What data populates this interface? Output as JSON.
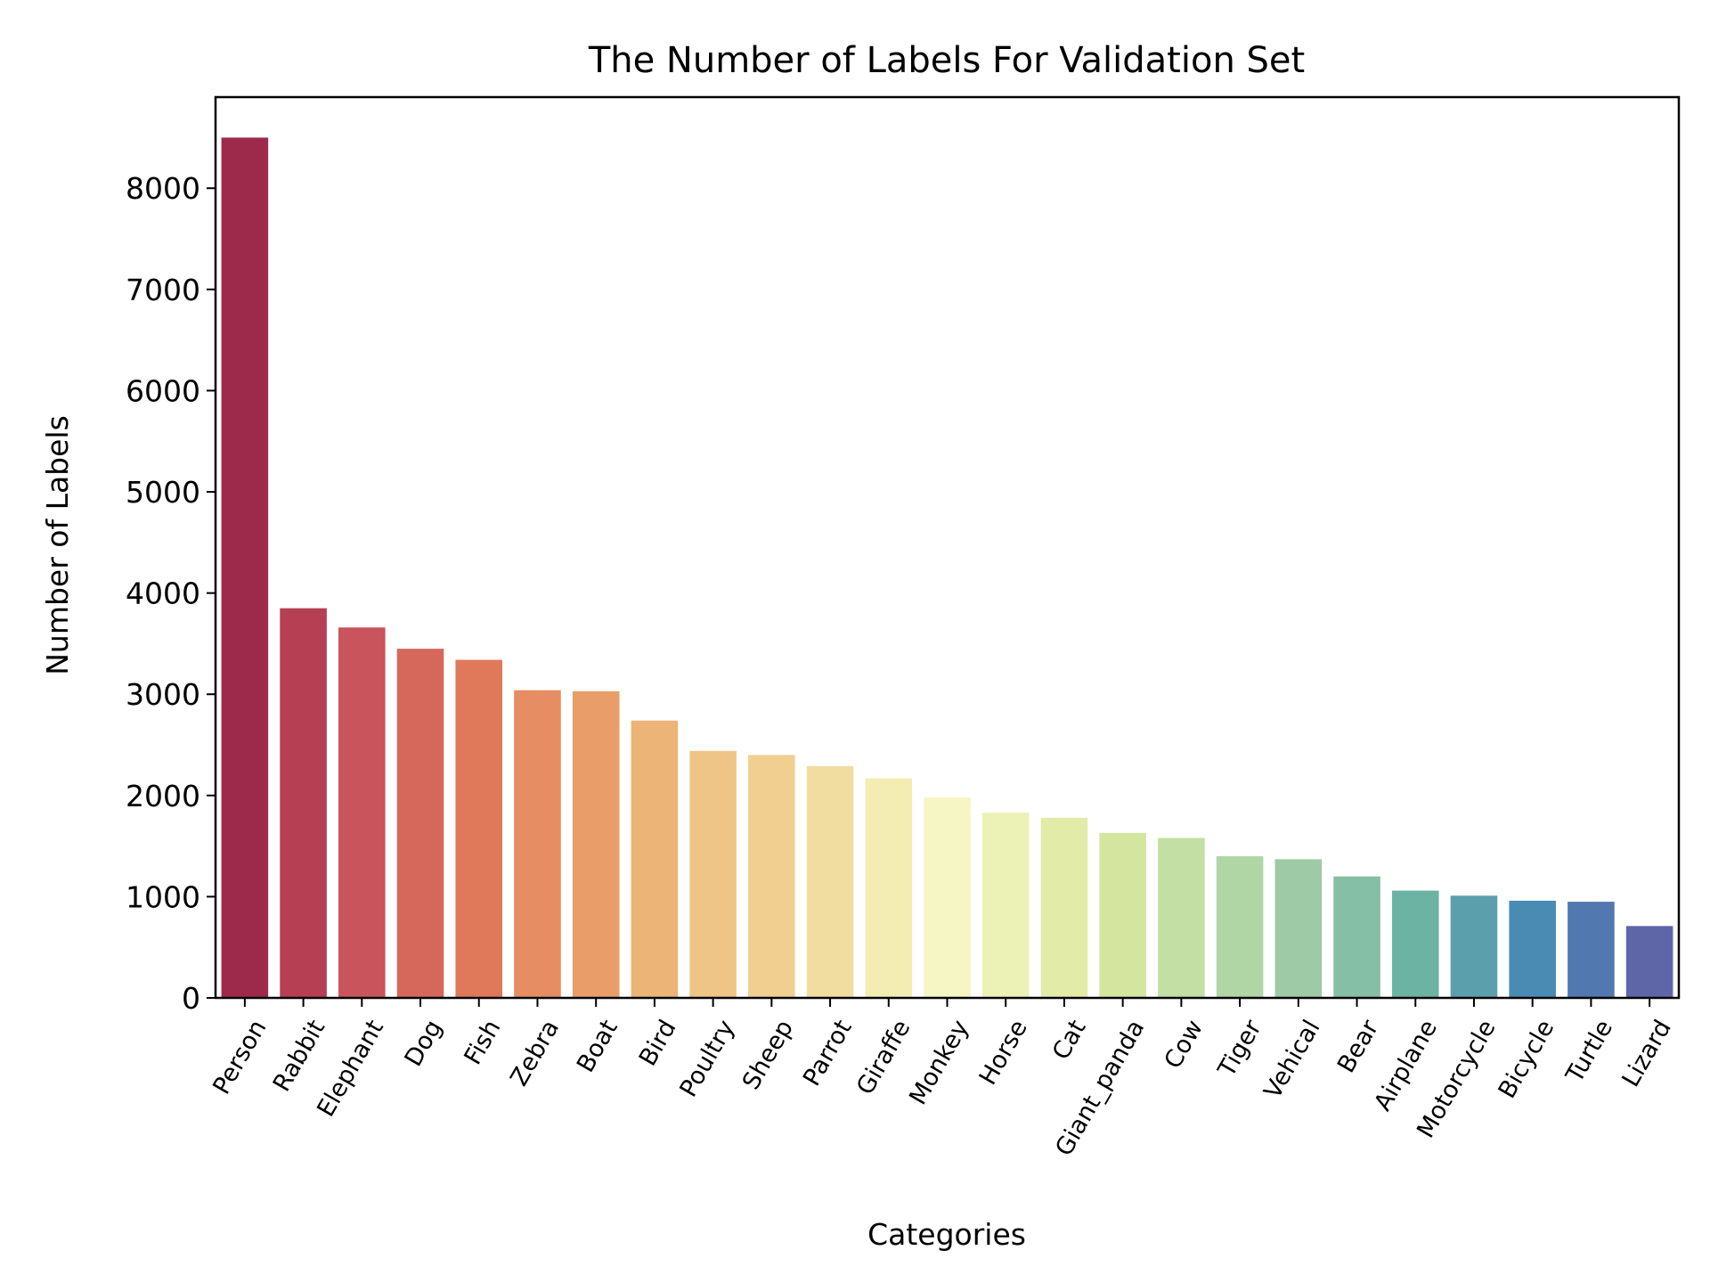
{
  "chart_data": {
    "type": "bar",
    "title": "The Number of Labels For Validation Set",
    "xlabel": "Categories",
    "ylabel": "Number of Labels",
    "ylim": [
      0,
      8900
    ],
    "yticks": [
      0,
      1000,
      2000,
      3000,
      4000,
      5000,
      6000,
      7000,
      8000
    ],
    "ytick_labels": [
      "0",
      "1000",
      "2000",
      "3000",
      "4000",
      "5000",
      "6000",
      "7000",
      "8000"
    ],
    "grid": false,
    "legend": "none",
    "palette": "Spectral",
    "categories": [
      "Person",
      "Rabbit",
      "Elephant",
      "Dog",
      "Fish",
      "Zebra",
      "Boat",
      "Bird",
      "Poultry",
      "Sheep",
      "Parrot",
      "Giraffe",
      "Monkey",
      "Horse",
      "Cat",
      "Giant_panda",
      "Cow",
      "Tiger",
      "Vehical",
      "Bear",
      "Airplane",
      "Motorcycle",
      "Bicycle",
      "Turtle",
      "Lizard"
    ],
    "values": [
      8500,
      3850,
      3660,
      3450,
      3340,
      3040,
      3030,
      2740,
      2440,
      2400,
      2290,
      2170,
      1980,
      1830,
      1780,
      1630,
      1580,
      1400,
      1370,
      1200,
      1060,
      1010,
      960,
      950,
      710
    ],
    "colors": [
      "#9e2a4b",
      "#b63f53",
      "#c9545b",
      "#d5685a",
      "#df7959",
      "#e68d63",
      "#e99e6a",
      "#ecb477",
      "#eec586",
      "#f0cf91",
      "#f1dd9f",
      "#f3ecb3",
      "#f6f6c4",
      "#ecf2b6",
      "#e2eca8",
      "#d4e59f",
      "#c3dfa3",
      "#b1d6a6",
      "#9ecaa5",
      "#85bfa5",
      "#6db3a3",
      "#5b9fad",
      "#4a8bb3",
      "#5179af",
      "#5e66a7"
    ]
  }
}
